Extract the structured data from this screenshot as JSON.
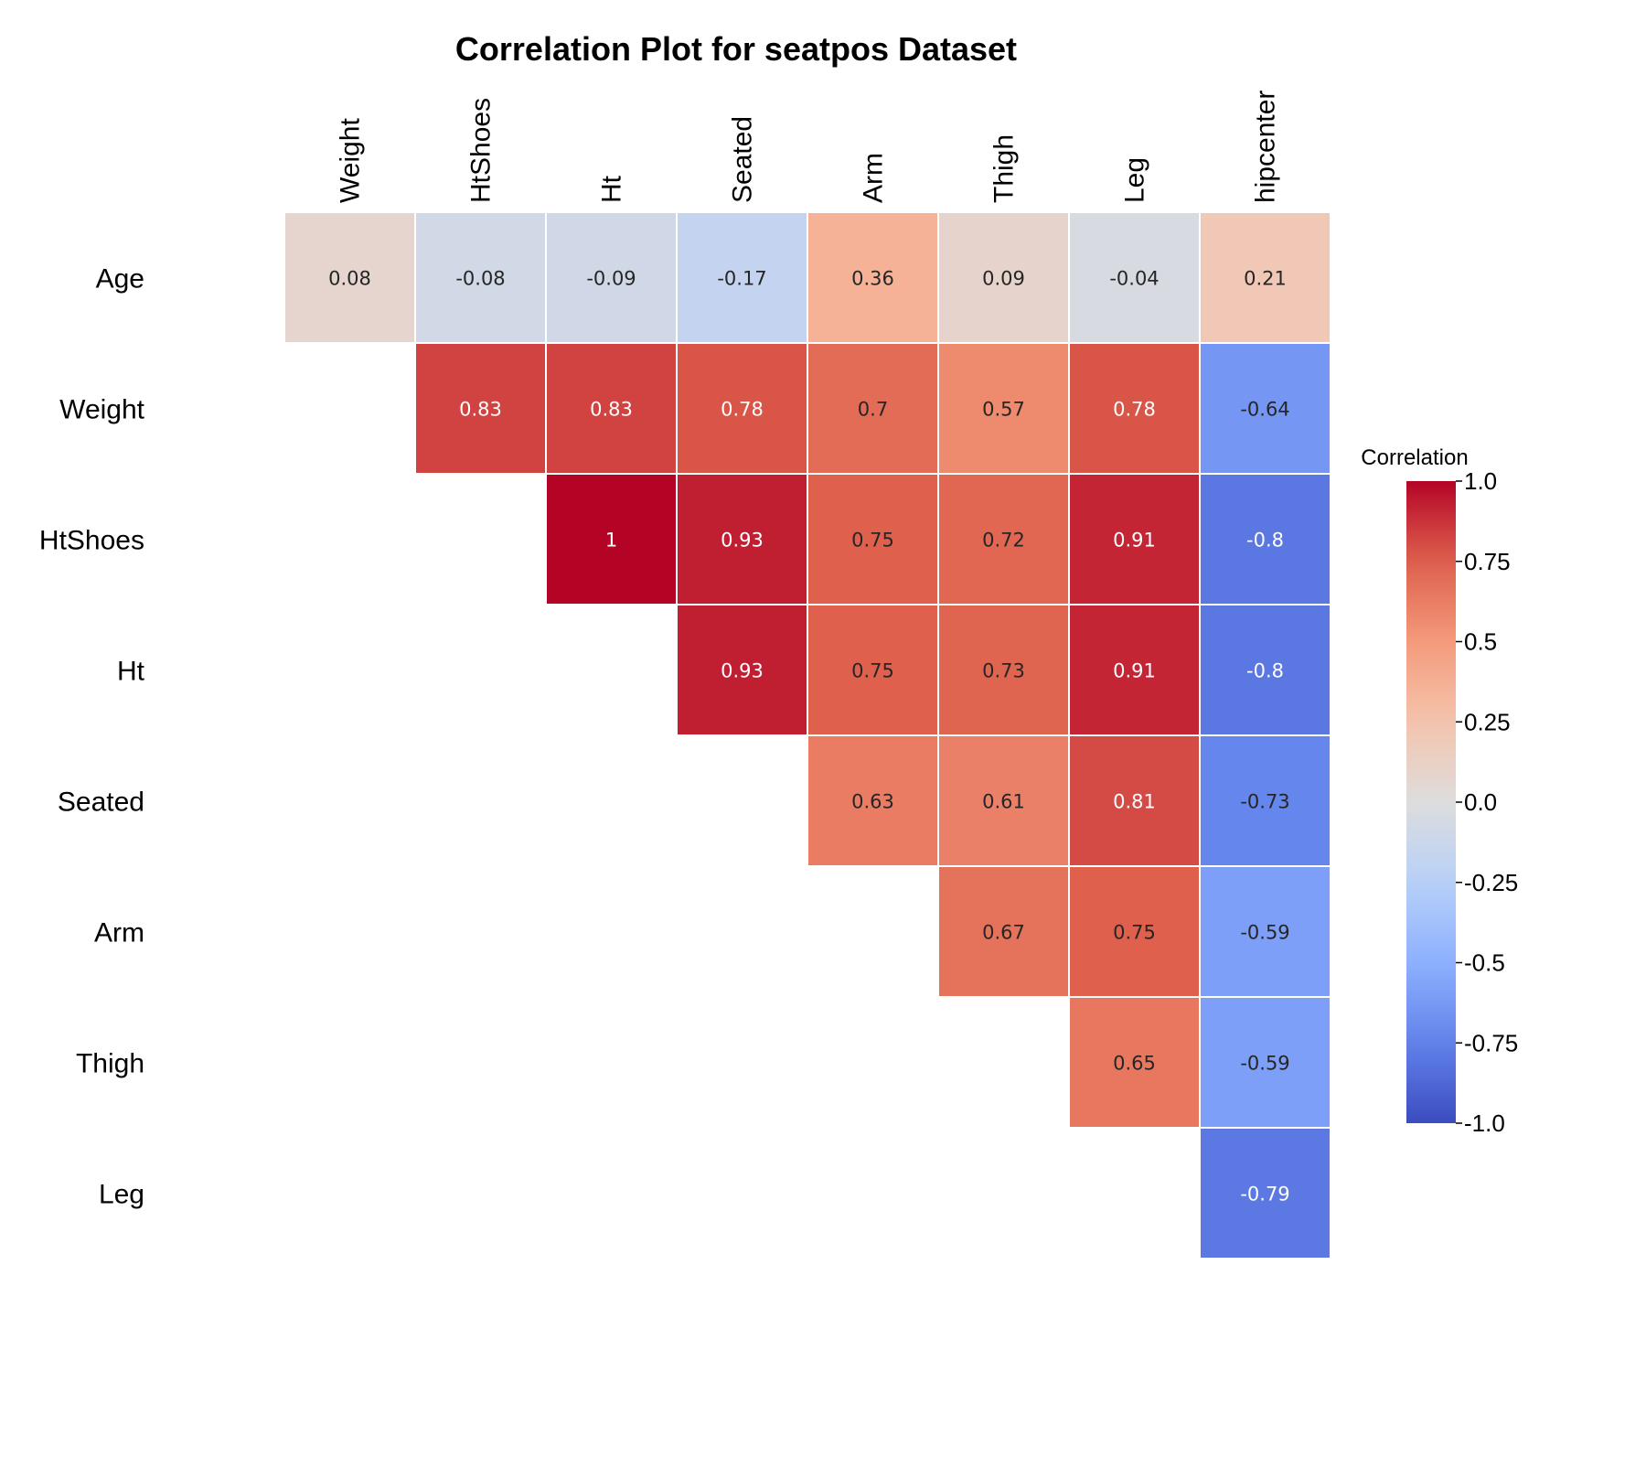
{
  "chart_data": {
    "type": "heatmap",
    "title": "Correlation Plot for seatpos Dataset",
    "x_labels": [
      "Weight",
      "HtShoes",
      "Ht",
      "Seated",
      "Arm",
      "Thigh",
      "Leg",
      "hipcenter"
    ],
    "y_labels": [
      "Age",
      "Weight",
      "HtShoes",
      "Ht",
      "Seated",
      "Arm",
      "Thigh",
      "Leg"
    ],
    "values": [
      [
        0.08,
        -0.08,
        -0.09,
        -0.17,
        0.36,
        0.09,
        -0.04,
        0.21
      ],
      [
        null,
        0.83,
        0.83,
        0.78,
        0.7,
        0.57,
        0.78,
        -0.64
      ],
      [
        null,
        null,
        1,
        0.93,
        0.75,
        0.72,
        0.91,
        -0.8
      ],
      [
        null,
        null,
        null,
        0.93,
        0.75,
        0.73,
        0.91,
        -0.8
      ],
      [
        null,
        null,
        null,
        null,
        0.63,
        0.61,
        0.81,
        -0.73
      ],
      [
        null,
        null,
        null,
        null,
        null,
        0.67,
        0.75,
        -0.59
      ],
      [
        null,
        null,
        null,
        null,
        null,
        null,
        0.65,
        -0.59
      ],
      [
        null,
        null,
        null,
        null,
        null,
        null,
        null,
        -0.79
      ]
    ],
    "colorscale": "coolwarm",
    "colorbar": {
      "title": "Correlation",
      "range": [
        -1.0,
        1.0
      ],
      "ticks": [
        1.0,
        0.75,
        0.5,
        0.25,
        0.0,
        -0.25,
        -0.5,
        -0.75,
        -1.0
      ],
      "tick_labels": [
        "1.0",
        "0.75",
        "0.5",
        "0.25",
        "0.0",
        "-0.25",
        "-0.5",
        "-0.75",
        "-1.0"
      ]
    }
  }
}
